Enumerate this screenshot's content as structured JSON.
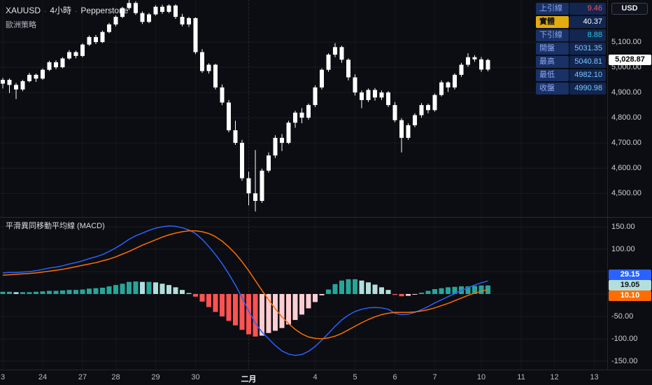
{
  "legend": {
    "symbol": "XAUUSD",
    "separator": "·",
    "interval": "4小時",
    "broker": "Pepperstone",
    "strategy": "歐洲策略"
  },
  "ohlc_panel": {
    "rows": [
      {
        "label": "上引線",
        "value": "9.46",
        "value_color": "#f7525f"
      },
      {
        "label": "實體",
        "value": "40.37",
        "value_color": "#ffffff",
        "highlight": true,
        "highlight_color": "#e2ab0e"
      },
      {
        "label": "下引線",
        "value": "8.88",
        "value_color": "#2bc9dc"
      },
      {
        "label": "開盤",
        "value": "5031.35",
        "value_color": "#7cc7ff"
      },
      {
        "label": "最高",
        "value": "5040.81",
        "value_color": "#7cc7ff"
      },
      {
        "label": "最低",
        "value": "4982.10",
        "value_color": "#7cc7ff"
      },
      {
        "label": "收盤",
        "value": "4990.98",
        "value_color": "#7cc7ff"
      }
    ]
  },
  "currency_button": {
    "label": "USD"
  },
  "price_axis": {
    "labels": [
      {
        "text": "5,100.00",
        "value": 5100
      },
      {
        "text": "5,000.00",
        "value": 5000
      },
      {
        "text": "4,900.00",
        "value": 4900
      },
      {
        "text": "4,800.00",
        "value": 4800
      },
      {
        "text": "4,700.00",
        "value": 4700
      },
      {
        "text": "4,600.00",
        "value": 4600
      },
      {
        "text": "4,500.00",
        "value": 4500
      }
    ],
    "last_price_tag": {
      "text": "5,028.87",
      "value": 5028.87,
      "bg": "#ffffff",
      "fg": "#000000"
    }
  },
  "macd": {
    "title": "平滑異同移動平均線 (MACD)",
    "axis_labels": [
      {
        "text": "150.00",
        "value": 150
      },
      {
        "text": "100.00",
        "value": 100
      },
      {
        "text": "-50.00",
        "value": -50
      },
      {
        "text": "-100.00",
        "value": -100
      },
      {
        "text": "-150.00",
        "value": -150
      }
    ],
    "value_tags": [
      {
        "name": "macd-line",
        "text": "29.15",
        "value": 29.15,
        "bg": "#2962ff",
        "fg": "#ffffff"
      },
      {
        "name": "histogram",
        "text": "19.05",
        "value": 19.05,
        "bg": "#b2dfdb",
        "fg": "#101418"
      },
      {
        "name": "signal-line",
        "text": "10.10",
        "value": 10.1,
        "bg": "#ff6d00",
        "fg": "#ffffff"
      }
    ]
  },
  "chart_data": [
    {
      "type": "candlestick",
      "title": "XAUUSD · 4小時 · Pepperstone",
      "ylabel": "USD",
      "y_range": [
        4406,
        5267
      ],
      "up_color": "#ffffff",
      "down_color": "#ffffff",
      "last_price": 5028.87,
      "x_labels": [
        {
          "text": "3",
          "bar": 0
        },
        {
          "text": "24",
          "bar": 6
        },
        {
          "text": "27",
          "bar": 12
        },
        {
          "text": "28",
          "bar": 17
        },
        {
          "text": "29",
          "bar": 23
        },
        {
          "text": "30",
          "bar": 29
        },
        {
          "text": "二月",
          "bar": 37,
          "month": true
        },
        {
          "text": "4",
          "bar": 47
        },
        {
          "text": "5",
          "bar": 53
        },
        {
          "text": "6",
          "bar": 59
        },
        {
          "text": "7",
          "bar": 65
        },
        {
          "text": "10",
          "bar": 72
        },
        {
          "text": "11",
          "bar": 78
        },
        {
          "text": "12",
          "bar": 83
        },
        {
          "text": "13",
          "bar": 89
        }
      ],
      "candles": [
        [
          4935,
          4958,
          4916,
          4950
        ],
        [
          4950,
          4956,
          4898,
          4930
        ],
        [
          4930,
          4938,
          4874,
          4912
        ],
        [
          4912,
          4950,
          4905,
          4945
        ],
        [
          4945,
          4978,
          4940,
          4970
        ],
        [
          4970,
          4975,
          4942,
          4955
        ],
        [
          4955,
          4995,
          4950,
          4990
        ],
        [
          4990,
          5026,
          4985,
          5020
        ],
        [
          5020,
          5028,
          4992,
          5000
        ],
        [
          5000,
          5040,
          4996,
          5035
        ],
        [
          5035,
          5068,
          5030,
          5060
        ],
        [
          5060,
          5066,
          5036,
          5045
        ],
        [
          5045,
          5095,
          5040,
          5090
        ],
        [
          5090,
          5126,
          5085,
          5120
        ],
        [
          5120,
          5128,
          5092,
          5100
        ],
        [
          5100,
          5146,
          5096,
          5140
        ],
        [
          5140,
          5176,
          5135,
          5170
        ],
        [
          5170,
          5206,
          5162,
          5200
        ],
        [
          5200,
          5240,
          5195,
          5235
        ],
        [
          5235,
          5268,
          5228,
          5255
        ],
        [
          5255,
          5262,
          5208,
          5215
        ],
        [
          5215,
          5222,
          5172,
          5180
        ],
        [
          5180,
          5216,
          5175,
          5210
        ],
        [
          5210,
          5246,
          5205,
          5240
        ],
        [
          5240,
          5248,
          5212,
          5220
        ],
        [
          5220,
          5250,
          5215,
          5245
        ],
        [
          5245,
          5250,
          5192,
          5200
        ],
        [
          5200,
          5212,
          5162,
          5170
        ],
        [
          5170,
          5200,
          5160,
          5195
        ],
        [
          5195,
          5198,
          5052,
          5060
        ],
        [
          5060,
          5072,
          4978,
          4985
        ],
        [
          4985,
          5016,
          4975,
          5010
        ],
        [
          5010,
          5014,
          4912,
          4920
        ],
        [
          4920,
          4932,
          4850,
          4860
        ],
        [
          4860,
          4870,
          4742,
          4750
        ],
        [
          4750,
          4788,
          4692,
          4700
        ],
        [
          4700,
          4712,
          4550,
          4560
        ],
        [
          4560,
          4586,
          4452,
          4500
        ],
        [
          4500,
          4672,
          4428,
          4470
        ],
        [
          4470,
          4598,
          4462,
          4590
        ],
        [
          4590,
          4662,
          4582,
          4650
        ],
        [
          4650,
          4730,
          4640,
          4720
        ],
        [
          4720,
          4735,
          4668,
          4700
        ],
        [
          4700,
          4788,
          4695,
          4780
        ],
        [
          4780,
          4828,
          4760,
          4820
        ],
        [
          4820,
          4838,
          4778,
          4800
        ],
        [
          4800,
          4856,
          4792,
          4850
        ],
        [
          4850,
          4928,
          4842,
          4920
        ],
        [
          4920,
          4996,
          4912,
          4990
        ],
        [
          4990,
          5056,
          4982,
          5050
        ],
        [
          5050,
          5096,
          5040,
          5080
        ],
        [
          5080,
          5086,
          5018,
          5030
        ],
        [
          5030,
          5036,
          4948,
          4960
        ],
        [
          4960,
          4972,
          4888,
          4900
        ],
        [
          4900,
          4908,
          4838,
          4870
        ],
        [
          4870,
          4916,
          4862,
          4910
        ],
        [
          4910,
          4918,
          4868,
          4880
        ],
        [
          4880,
          4908,
          4870,
          4900
        ],
        [
          4900,
          4906,
          4842,
          4850
        ],
        [
          4850,
          4862,
          4782,
          4790
        ],
        [
          4790,
          4798,
          4662,
          4720
        ],
        [
          4720,
          4778,
          4712,
          4770
        ],
        [
          4770,
          4818,
          4762,
          4810
        ],
        [
          4810,
          4858,
          4800,
          4850
        ],
        [
          4850,
          4856,
          4818,
          4830
        ],
        [
          4830,
          4896,
          4824,
          4890
        ],
        [
          4890,
          4948,
          4884,
          4940
        ],
        [
          4940,
          4944,
          4902,
          4920
        ],
        [
          4920,
          4976,
          4912,
          4970
        ],
        [
          4970,
          5018,
          4962,
          5010
        ],
        [
          5010,
          5056,
          5002,
          5040
        ],
        [
          5040,
          5048,
          5022,
          5031.35
        ],
        [
          5031.35,
          5040.81,
          4982.1,
          4990.98
        ],
        [
          4990.98,
          5034,
          4984,
          5028.87
        ]
      ]
    },
    {
      "type": "macd",
      "title": "平滑異同移動平均線 (MACD)",
      "y_range": [
        -168.75,
        171.875
      ],
      "colors": {
        "macd": "#2962ff",
        "signal": "#ff6d00",
        "hist_up": "#26a69a",
        "hist_up_weak": "#b2dfdb",
        "hist_down": "#ff5252",
        "hist_down_weak": "#ffcdd2"
      },
      "last_values": {
        "macd": 29.15,
        "histogram": 19.05,
        "signal": 10.1
      },
      "series": [
        {
          "name": "MACD",
          "values": [
            47,
            48,
            48,
            49,
            50,
            52,
            55,
            58,
            60,
            63,
            67,
            70,
            74,
            79,
            83,
            88,
            95,
            103,
            112,
            122,
            130,
            136,
            142,
            147,
            150,
            152,
            151,
            148,
            143,
            135,
            122,
            106,
            88,
            68,
            45,
            20,
            -8,
            -38,
            -65,
            -85,
            -100,
            -115,
            -127,
            -134,
            -137,
            -135,
            -128,
            -117,
            -103,
            -88,
            -72,
            -58,
            -47,
            -39,
            -34,
            -31,
            -30,
            -31,
            -34,
            -43,
            -46,
            -45,
            -41,
            -35,
            -28,
            -20,
            -13,
            -6,
            1,
            8,
            14,
            20,
            25,
            29.15
          ]
        },
        {
          "name": "Signal",
          "values": [
            42,
            43,
            44,
            45,
            46,
            47,
            49,
            51,
            53,
            55,
            58,
            61,
            64,
            67,
            70,
            74,
            78,
            83,
            89,
            95,
            102,
            109,
            115,
            121,
            127,
            132,
            136,
            139,
            141,
            141,
            139,
            135,
            128,
            118,
            105,
            90,
            72,
            52,
            30,
            8,
            -13,
            -33,
            -51,
            -66,
            -79,
            -89,
            -96,
            -99,
            -100,
            -98,
            -94,
            -88,
            -80,
            -72,
            -64,
            -57,
            -51,
            -46,
            -43,
            -41,
            -41,
            -41,
            -40,
            -38,
            -35,
            -31,
            -26,
            -21,
            -15,
            -9,
            -3,
            2,
            6,
            10.1
          ]
        },
        {
          "name": "Histogram",
          "values": [
            5,
            5,
            4,
            4,
            4,
            5,
            6,
            7,
            7,
            8,
            9,
            9,
            10,
            12,
            13,
            14,
            17,
            20,
            23,
            27,
            28,
            27,
            27,
            26,
            23,
            20,
            15,
            9,
            2,
            -6,
            -17,
            -29,
            -40,
            -50,
            -60,
            -70,
            -80,
            -90,
            -95,
            -93,
            -87,
            -82,
            -76,
            -68,
            -58,
            -46,
            -32,
            -18,
            -3,
            10,
            22,
            30,
            33,
            33,
            30,
            26,
            21,
            15,
            9,
            -2,
            -5,
            -4,
            -1,
            3,
            7,
            11,
            13,
            15,
            16,
            17,
            17,
            18,
            19,
            19.05
          ]
        }
      ]
    }
  ]
}
